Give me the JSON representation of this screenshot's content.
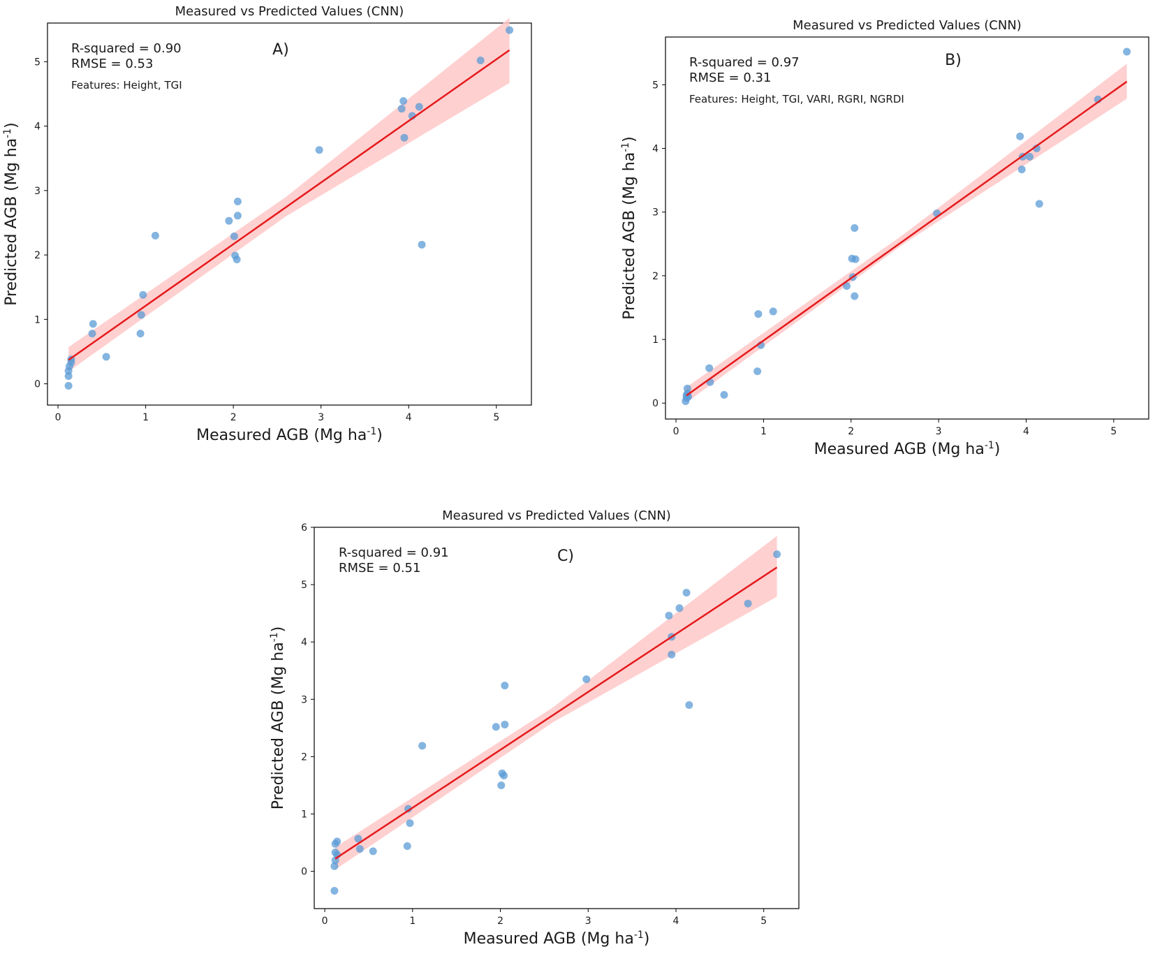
{
  "chart_data": [
    {
      "type": "scatter",
      "panel_label": "A)",
      "title": "Measured vs Predicted Values (CNN)",
      "xlabel_base": "Measured AGB (Mg ha",
      "ylabel_base": "Predicted AGB (Mg ha",
      "unit_superscript": "-1",
      "label_close": ")",
      "r_squared": "R-squared = 0.90",
      "rmse": "RMSE = 0.53",
      "features": "Features: Height, TGI",
      "xlim": [
        -0.12,
        5.4
      ],
      "ylim": [
        -0.33,
        5.6
      ],
      "xticks": [
        0,
        1,
        2,
        3,
        4,
        5
      ],
      "yticks": [
        0,
        1,
        2,
        3,
        4,
        5
      ],
      "points": [
        {
          "x": 0.12,
          "y": -0.03
        },
        {
          "x": 0.12,
          "y": 0.12
        },
        {
          "x": 0.12,
          "y": 0.2
        },
        {
          "x": 0.13,
          "y": 0.27
        },
        {
          "x": 0.15,
          "y": 0.33
        },
        {
          "x": 0.15,
          "y": 0.38
        },
        {
          "x": 0.39,
          "y": 0.78
        },
        {
          "x": 0.4,
          "y": 0.93
        },
        {
          "x": 0.55,
          "y": 0.42
        },
        {
          "x": 0.94,
          "y": 0.78
        },
        {
          "x": 0.95,
          "y": 1.07
        },
        {
          "x": 0.97,
          "y": 1.38
        },
        {
          "x": 1.11,
          "y": 2.3
        },
        {
          "x": 1.95,
          "y": 2.53
        },
        {
          "x": 2.01,
          "y": 2.29
        },
        {
          "x": 2.02,
          "y": 1.99
        },
        {
          "x": 2.04,
          "y": 1.93
        },
        {
          "x": 2.05,
          "y": 2.61
        },
        {
          "x": 2.05,
          "y": 2.83
        },
        {
          "x": 2.98,
          "y": 3.63
        },
        {
          "x": 3.92,
          "y": 4.27
        },
        {
          "x": 3.94,
          "y": 4.39
        },
        {
          "x": 3.95,
          "y": 3.82
        },
        {
          "x": 4.04,
          "y": 4.16
        },
        {
          "x": 4.12,
          "y": 4.3
        },
        {
          "x": 4.15,
          "y": 2.16
        },
        {
          "x": 4.82,
          "y": 5.02
        },
        {
          "x": 5.15,
          "y": 5.49
        }
      ],
      "fit_line": {
        "x": [
          0.12,
          5.15
        ],
        "y": [
          0.37,
          5.18
        ],
        "color": "#e41a1c"
      },
      "confidence_band": {
        "x": [
          0.12,
          2.6,
          5.15
        ],
        "lower": [
          0.19,
          2.6,
          4.67
        ],
        "upper": [
          0.57,
          2.9,
          5.68
        ],
        "color": "#ffc8c8"
      },
      "point_color": "#5b9bd5"
    },
    {
      "type": "scatter",
      "panel_label": "B)",
      "title": "Measured vs Predicted Values (CNN)",
      "xlabel_base": "Measured AGB (Mg ha",
      "ylabel_base": "Predicted AGB (Mg ha",
      "unit_superscript": "-1",
      "label_close": ")",
      "r_squared": "R-squared = 0.97",
      "rmse": "RMSE = 0.31",
      "features": "Features: Height, TGI, VARI, RGRI, NGRDI",
      "xlim": [
        -0.12,
        5.4
      ],
      "ylim": [
        -0.25,
        5.75
      ],
      "xticks": [
        0,
        1,
        2,
        3,
        4,
        5
      ],
      "yticks": [
        0,
        1,
        2,
        3,
        4,
        5
      ],
      "points": [
        {
          "x": 0.11,
          "y": 0.03
        },
        {
          "x": 0.12,
          "y": 0.08
        },
        {
          "x": 0.12,
          "y": 0.12
        },
        {
          "x": 0.13,
          "y": 0.15
        },
        {
          "x": 0.13,
          "y": 0.23
        },
        {
          "x": 0.14,
          "y": 0.1
        },
        {
          "x": 0.38,
          "y": 0.55
        },
        {
          "x": 0.39,
          "y": 0.33
        },
        {
          "x": 0.55,
          "y": 0.13
        },
        {
          "x": 0.93,
          "y": 0.5
        },
        {
          "x": 0.94,
          "y": 1.4
        },
        {
          "x": 0.97,
          "y": 0.91
        },
        {
          "x": 1.11,
          "y": 1.44
        },
        {
          "x": 1.95,
          "y": 1.84
        },
        {
          "x": 2.01,
          "y": 2.27
        },
        {
          "x": 2.02,
          "y": 1.98
        },
        {
          "x": 2.04,
          "y": 1.68
        },
        {
          "x": 2.04,
          "y": 2.75
        },
        {
          "x": 2.05,
          "y": 2.26
        },
        {
          "x": 2.98,
          "y": 2.98
        },
        {
          "x": 3.93,
          "y": 4.19
        },
        {
          "x": 3.95,
          "y": 3.67
        },
        {
          "x": 3.96,
          "y": 3.87
        },
        {
          "x": 4.04,
          "y": 3.87
        },
        {
          "x": 4.12,
          "y": 4.0
        },
        {
          "x": 4.15,
          "y": 3.13
        },
        {
          "x": 4.82,
          "y": 4.77
        },
        {
          "x": 5.15,
          "y": 5.52
        }
      ],
      "fit_line": {
        "x": [
          0.12,
          5.15
        ],
        "y": [
          0.12,
          5.05
        ],
        "color": "#e41a1c"
      },
      "confidence_band": {
        "x": [
          0.12,
          2.6,
          5.15
        ],
        "lower": [
          0.01,
          2.5,
          4.78
        ],
        "upper": [
          0.25,
          2.65,
          5.33
        ],
        "color": "#ffc8c8"
      },
      "point_color": "#5b9bd5"
    },
    {
      "type": "scatter",
      "panel_label": "C)",
      "title": "Measured vs Predicted Values (CNN)",
      "xlabel_base": "Measured AGB (Mg ha",
      "ylabel_base": "Predicted AGB (Mg ha",
      "unit_superscript": "-1",
      "label_close": ")",
      "r_squared": "R-squared = 0.91",
      "rmse": "RMSE = 0.51",
      "features": "",
      "xlim": [
        -0.12,
        5.4
      ],
      "ylim": [
        -0.65,
        6.0
      ],
      "xticks": [
        0,
        1,
        2,
        3,
        4,
        5
      ],
      "yticks": [
        0,
        1,
        2,
        3,
        4,
        5,
        6
      ],
      "points": [
        {
          "x": 0.11,
          "y": -0.34
        },
        {
          "x": 0.11,
          "y": 0.09
        },
        {
          "x": 0.12,
          "y": 0.19
        },
        {
          "x": 0.12,
          "y": 0.33
        },
        {
          "x": 0.12,
          "y": 0.48
        },
        {
          "x": 0.14,
          "y": 0.52
        },
        {
          "x": 0.14,
          "y": 0.29
        },
        {
          "x": 0.38,
          "y": 0.57
        },
        {
          "x": 0.4,
          "y": 0.39
        },
        {
          "x": 0.55,
          "y": 0.35
        },
        {
          "x": 0.94,
          "y": 0.44
        },
        {
          "x": 0.95,
          "y": 1.09
        },
        {
          "x": 0.97,
          "y": 0.84
        },
        {
          "x": 1.11,
          "y": 2.19
        },
        {
          "x": 1.95,
          "y": 2.52
        },
        {
          "x": 2.01,
          "y": 1.5
        },
        {
          "x": 2.02,
          "y": 1.71
        },
        {
          "x": 2.04,
          "y": 1.67
        },
        {
          "x": 2.05,
          "y": 2.56
        },
        {
          "x": 2.05,
          "y": 3.24
        },
        {
          "x": 2.98,
          "y": 3.35
        },
        {
          "x": 3.92,
          "y": 4.46
        },
        {
          "x": 3.95,
          "y": 4.09
        },
        {
          "x": 3.95,
          "y": 3.78
        },
        {
          "x": 4.04,
          "y": 4.59
        },
        {
          "x": 4.12,
          "y": 4.86
        },
        {
          "x": 4.15,
          "y": 2.9
        },
        {
          "x": 4.82,
          "y": 4.67
        },
        {
          "x": 5.15,
          "y": 5.53
        }
      ],
      "fit_line": {
        "x": [
          0.12,
          5.15
        ],
        "y": [
          0.22,
          5.3
        ],
        "color": "#e41a1c"
      },
      "confidence_band": {
        "x": [
          0.12,
          2.6,
          5.15
        ],
        "lower": [
          0.03,
          2.6,
          4.79
        ],
        "upper": [
          0.42,
          2.86,
          5.85
        ],
        "color": "#ffc8c8"
      },
      "point_color": "#5b9bd5"
    }
  ]
}
